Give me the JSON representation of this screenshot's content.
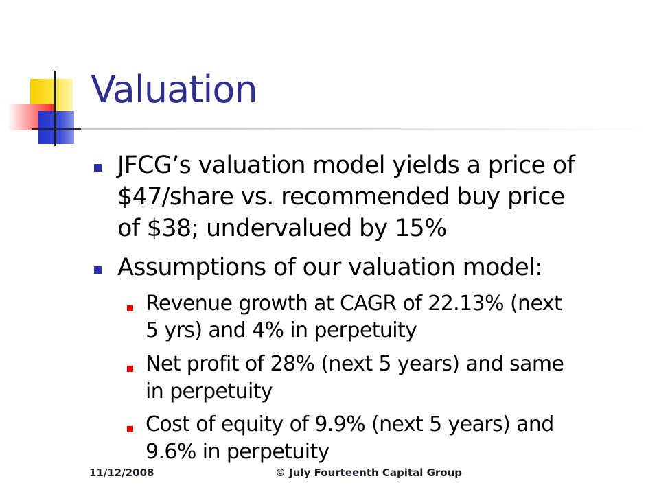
{
  "slide": {
    "title": "Valuation",
    "bullets": [
      {
        "lines": [
          "JFCG’s valuation model yields a price of",
          "$47/share vs. recommended buy price",
          "of $38; undervalued by 15%"
        ]
      },
      {
        "lines": [
          "Assumptions of our valuation model:"
        ],
        "sub_bullets": [
          {
            "lines": [
              "Revenue growth at CAGR of 22.13% (next",
              "5 yrs) and 4% in perpetuity"
            ]
          },
          {
            "lines": [
              "Net profit of 28% (next 5 years) and  same",
              "in perpetuity"
            ]
          },
          {
            "lines": [
              "Cost of equity of 9.9% (next 5 years) and",
              "9.6% in perpetuity"
            ]
          }
        ]
      }
    ],
    "footer": {
      "date": "11/12/2008",
      "copyright": "© July Fourteenth Capital Group"
    }
  },
  "colors": {
    "title": "#2e2e8f",
    "level1_bullet": "#2a2fb0",
    "level2_bullet": "#ff0000",
    "text": "#000000"
  },
  "icons": {
    "level1_bullet": "square-bullet-icon",
    "level2_bullet": "square-bullet-icon",
    "decoration": "overlapping-squares-logo"
  }
}
